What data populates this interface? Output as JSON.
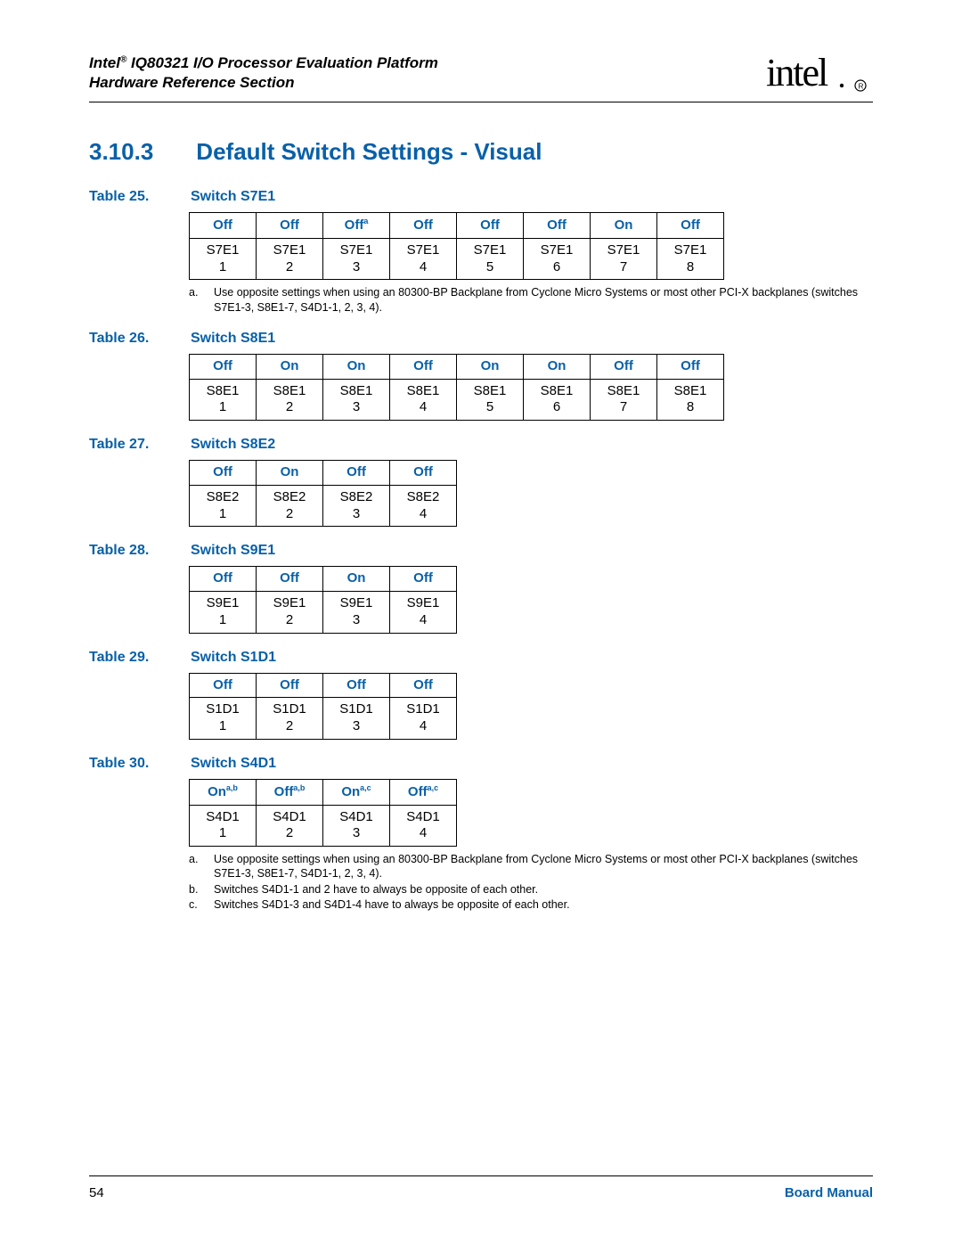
{
  "header": {
    "line1_before_sup": "Intel",
    "line1_sup": "®",
    "line1_after_sup": " IQ80321 I/O Processor Evaluation Platform",
    "line2": "Hardware Reference Section"
  },
  "section": {
    "number": "3.10.3",
    "title": "Default Switch Settings - Visual"
  },
  "tables": [
    {
      "num": "Table 25.",
      "name": "Switch S7E1",
      "headers": [
        {
          "text": "Off",
          "sup": ""
        },
        {
          "text": "Off",
          "sup": ""
        },
        {
          "text": "Off",
          "sup": "a"
        },
        {
          "text": "Off",
          "sup": ""
        },
        {
          "text": "Off",
          "sup": ""
        },
        {
          "text": "Off",
          "sup": ""
        },
        {
          "text": "On",
          "sup": ""
        },
        {
          "text": "Off",
          "sup": ""
        }
      ],
      "label": "S7E1",
      "count": 8,
      "footnotes": [
        {
          "m": "a.",
          "t": "Use opposite settings when using an 80300-BP Backplane from Cyclone Micro Systems or most other PCI-X backplanes (switches S7E1-3, S8E1-7, S4D1-1, 2, 3, 4)."
        }
      ]
    },
    {
      "num": "Table 26.",
      "name": "Switch S8E1",
      "headers": [
        {
          "text": "Off",
          "sup": ""
        },
        {
          "text": "On",
          "sup": ""
        },
        {
          "text": "On",
          "sup": ""
        },
        {
          "text": "Off",
          "sup": ""
        },
        {
          "text": "On",
          "sup": ""
        },
        {
          "text": "On",
          "sup": ""
        },
        {
          "text": "Off",
          "sup": ""
        },
        {
          "text": "Off",
          "sup": ""
        }
      ],
      "label": "S8E1",
      "count": 8,
      "footnotes": []
    },
    {
      "num": "Table 27.",
      "name": "Switch S8E2",
      "headers": [
        {
          "text": "Off",
          "sup": ""
        },
        {
          "text": "On",
          "sup": ""
        },
        {
          "text": "Off",
          "sup": ""
        },
        {
          "text": "Off",
          "sup": ""
        }
      ],
      "label": "S8E2",
      "count": 4,
      "footnotes": []
    },
    {
      "num": "Table 28.",
      "name": "Switch S9E1",
      "headers": [
        {
          "text": "Off",
          "sup": ""
        },
        {
          "text": "Off",
          "sup": ""
        },
        {
          "text": "On",
          "sup": ""
        },
        {
          "text": "Off",
          "sup": ""
        }
      ],
      "label": "S9E1",
      "count": 4,
      "footnotes": []
    },
    {
      "num": "Table 29.",
      "name": "Switch S1D1",
      "headers": [
        {
          "text": "Off",
          "sup": ""
        },
        {
          "text": "Off",
          "sup": ""
        },
        {
          "text": "Off",
          "sup": ""
        },
        {
          "text": "Off",
          "sup": ""
        }
      ],
      "label": "S1D1",
      "count": 4,
      "footnotes": []
    },
    {
      "num": "Table 30.",
      "name": "Switch S4D1",
      "headers": [
        {
          "text": "On",
          "sup": "a,b"
        },
        {
          "text": "Off",
          "sup": "a,b"
        },
        {
          "text": "On",
          "sup": "a,c"
        },
        {
          "text": "Off",
          "sup": "a,c"
        }
      ],
      "label": "S4D1",
      "count": 4,
      "footnotes": [
        {
          "m": "a.",
          "t": "Use opposite settings when using an 80300-BP Backplane from Cyclone Micro Systems or most other PCI-X backplanes (switches S7E1-3, S8E1-7, S4D1-1, 2, 3, 4)."
        },
        {
          "m": "b.",
          "t": "Switches S4D1-1 and 2 have to always be opposite of each other."
        },
        {
          "m": "c.",
          "t": "Switches S4D1-3 and S4D1-4 have to always be opposite of each other."
        }
      ]
    }
  ],
  "footer": {
    "page": "54",
    "label": "Board Manual"
  },
  "colors": {
    "accent": "#0860a8",
    "text": "#000000",
    "bg": "#ffffff"
  }
}
